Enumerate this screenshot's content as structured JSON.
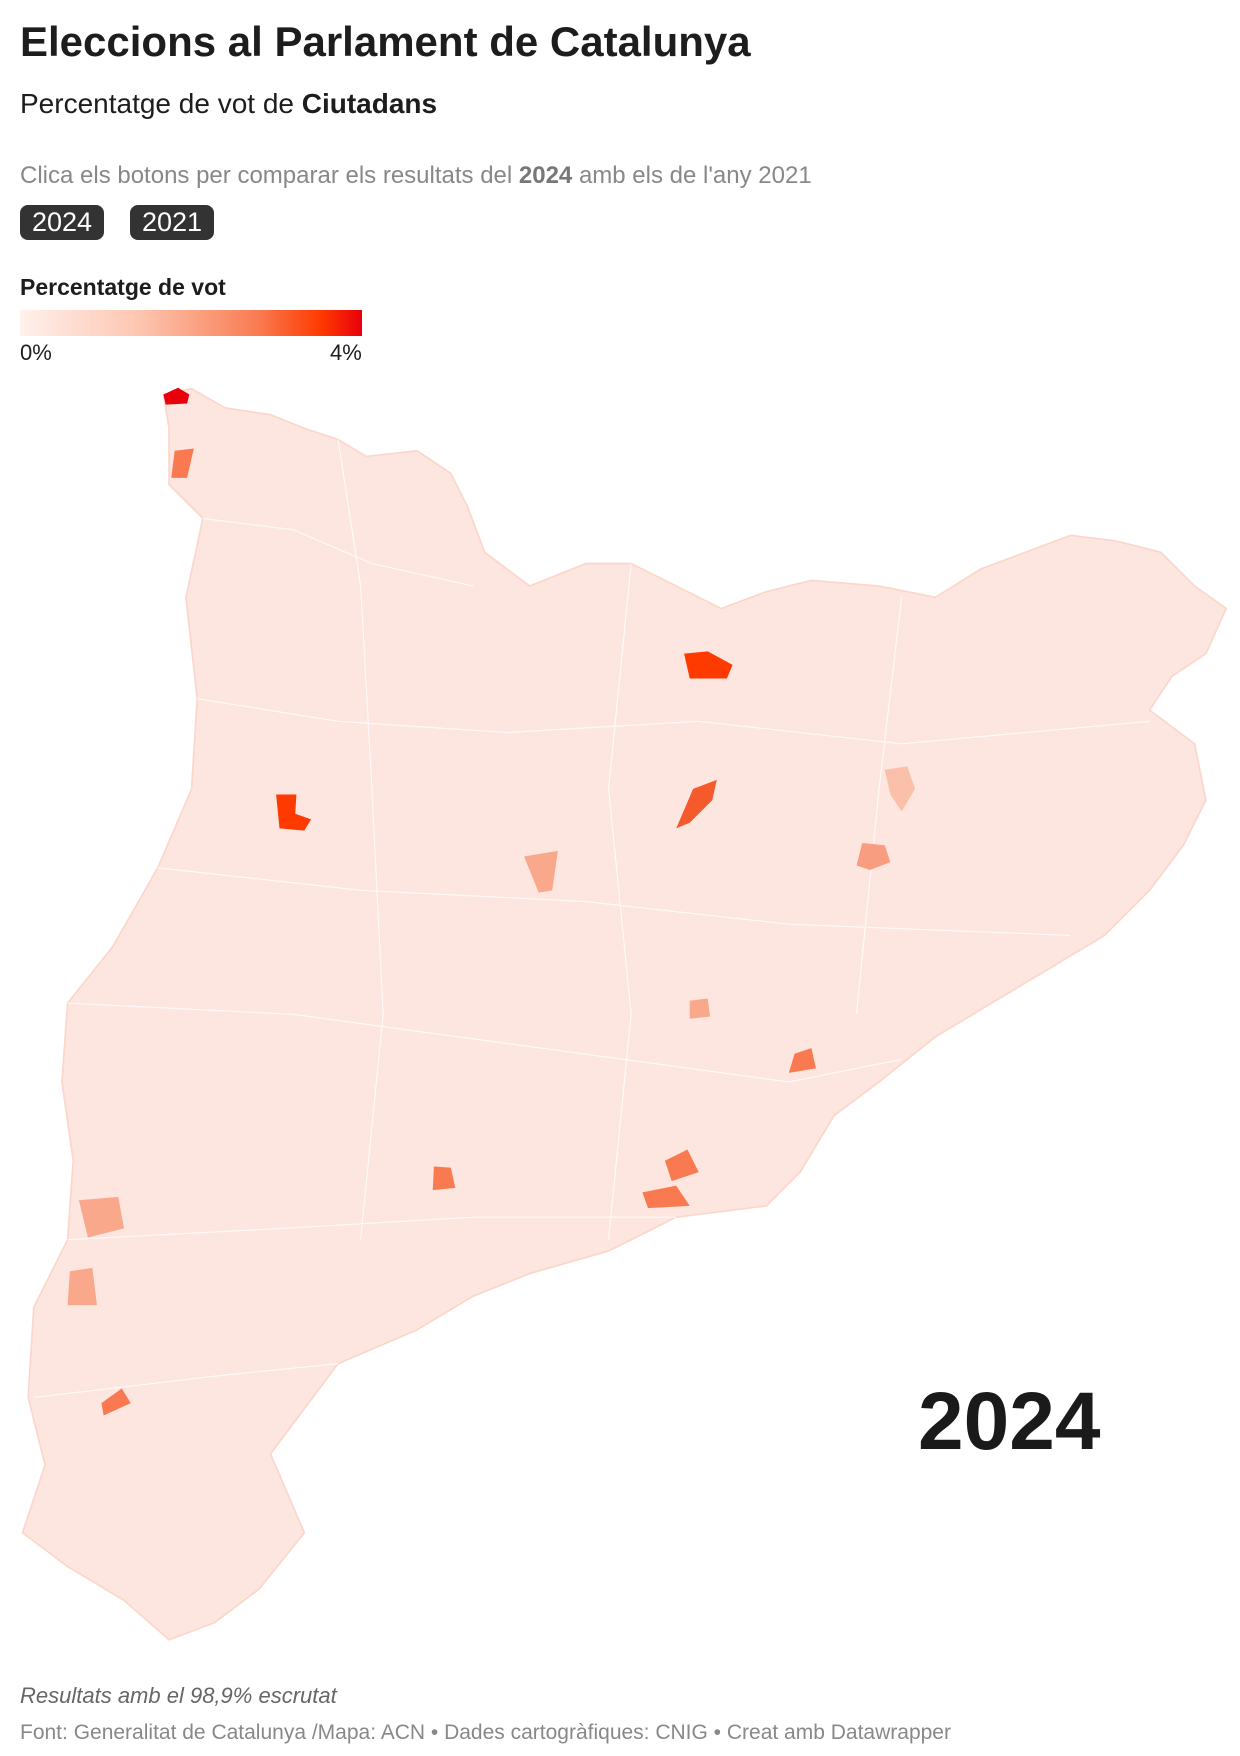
{
  "header": {
    "title": "Eleccions al Parlament de Catalunya",
    "subtitle": {
      "text": "Percentatge de vot de ",
      "party": "Ciutadans"
    },
    "instruction": {
      "before": "Clica els botons per comparar els resultats del ",
      "year": "2024",
      "after": " amb els de l'any 2021"
    }
  },
  "buttons": [
    "2024",
    "2021"
  ],
  "legend": {
    "title": "Percentatge de vot",
    "min": "0%",
    "max": "4%"
  },
  "map": {
    "year_label": "2024"
  },
  "footer": {
    "note": "Resultats amb el 98,9% escrutat",
    "source": "Font: Generalitat de Catalunya /Mapa: ACN • Dades cartogràfiques: CNIG  • Creat amb Datawrapper"
  }
}
